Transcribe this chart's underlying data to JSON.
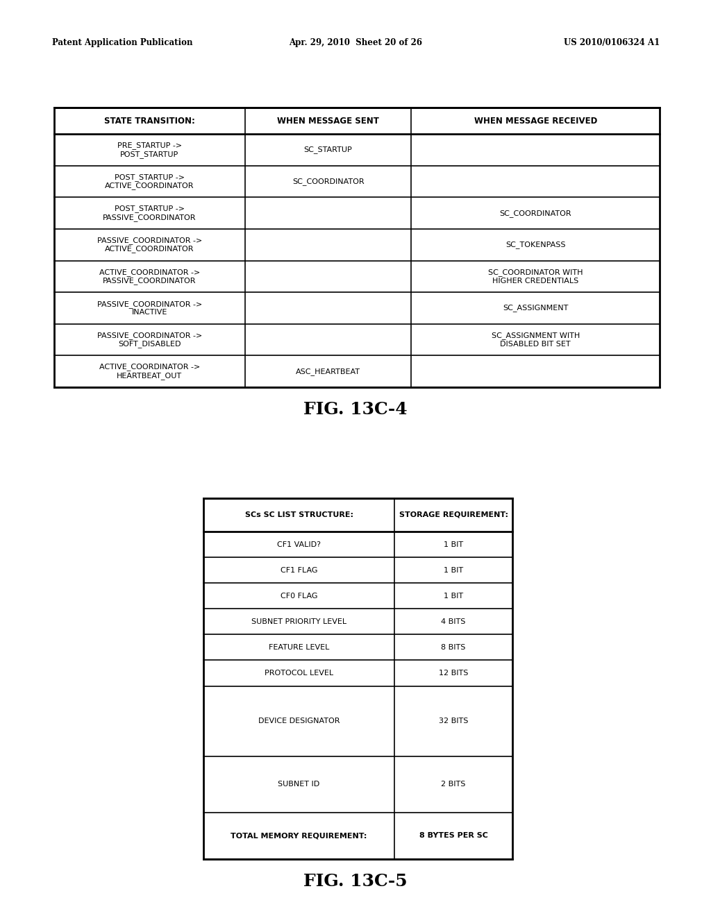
{
  "header_text_left": "Patent Application Publication",
  "header_text_mid": "Apr. 29, 2010  Sheet 20 of 26",
  "header_text_right": "US 2010/0106324 A1",
  "fig1_caption": "FIG. 13C-4",
  "fig2_caption": "FIG. 13C-5",
  "table1": {
    "headers": [
      "STATE TRANSITION:",
      "WHEN MESSAGE SENT",
      "WHEN MESSAGE RECEIVED"
    ],
    "rows": [
      [
        "PRE_STARTUP ->\nPOST_STARTUP",
        "SC_STARTUP",
        ""
      ],
      [
        "POST_STARTUP ->\nACTIVE_COORDINATOR",
        "SC_COORDINATOR",
        ""
      ],
      [
        "POST_STARTUP ->\nPASSIVE_COORDINATOR",
        "",
        "SC_COORDINATOR"
      ],
      [
        "PASSIVE_COORDINATOR ->\nACTIVE_COORDINATOR",
        "",
        "SC_TOKENPASS"
      ],
      [
        "ACTIVE_COORDINATOR ->\nPASSIVE_COORDINATOR",
        "",
        "SC_COORDINATOR WITH\nHIGHER CREDENTIALS"
      ],
      [
        "PASSIVE_COORDINATOR ->\nINACTIVE",
        "",
        "SC_ASSIGNMENT"
      ],
      [
        "PASSIVE_COORDINATOR ->\nSOFT_DISABLED",
        "",
        "SC_ASSIGNMENT WITH\nDISABLED BIT SET"
      ],
      [
        "ACTIVE_COORDINATOR ->\nHEARTBEAT_OUT",
        "ASC_HEARTBEAT",
        ""
      ]
    ]
  },
  "table2": {
    "headers": [
      "SCs SC LIST STRUCTURE:",
      "STORAGE REQUIREMENT:"
    ],
    "rows": [
      [
        "CF1 VALID?",
        "1 BIT"
      ],
      [
        "CF1 FLAG",
        "1 BIT"
      ],
      [
        "CF0 FLAG",
        "1 BIT"
      ],
      [
        "SUBNET PRIORITY LEVEL",
        "4 BITS"
      ],
      [
        "FEATURE LEVEL",
        "8 BITS"
      ],
      [
        "PROTOCOL LEVEL",
        "12 BITS"
      ],
      [
        "DEVICE DESIGNATOR",
        "32 BITS"
      ],
      [
        "SUBNET ID",
        "2 BITS"
      ],
      [
        "TOTAL MEMORY REQUIREMENT:",
        "8 BYTES PER SC"
      ]
    ]
  },
  "bg_color": "#ffffff"
}
